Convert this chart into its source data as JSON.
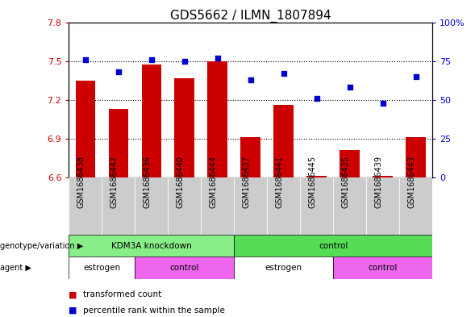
{
  "title": "GDS5662 / ILMN_1807894",
  "samples": [
    "GSM1686438",
    "GSM1686442",
    "GSM1686436",
    "GSM1686440",
    "GSM1686444",
    "GSM1686437",
    "GSM1686441",
    "GSM1686445",
    "GSM1686435",
    "GSM1686439",
    "GSM1686443"
  ],
  "bar_values": [
    7.35,
    7.13,
    7.47,
    7.37,
    7.5,
    6.91,
    7.16,
    6.61,
    6.81,
    6.61,
    6.91
  ],
  "percentile_values": [
    76,
    68,
    76,
    75,
    77,
    63,
    67,
    51,
    58,
    48,
    65
  ],
  "bar_bottom": 6.6,
  "ylim_left": [
    6.6,
    7.8
  ],
  "ylim_right": [
    0,
    100
  ],
  "yticks_left": [
    6.6,
    6.9,
    7.2,
    7.5,
    7.8
  ],
  "ytick_labels_left": [
    "6.6",
    "6.9",
    "7.2",
    "7.5",
    "7.8"
  ],
  "yticks_right": [
    0,
    25,
    50,
    75,
    100
  ],
  "ytick_labels_right": [
    "0",
    "25",
    "50",
    "75",
    "100%"
  ],
  "bar_color": "#cc0000",
  "scatter_color": "#0000cc",
  "genotype_groups": [
    {
      "label": "KDM3A knockdown",
      "start": 0,
      "end": 5,
      "color": "#88ee88"
    },
    {
      "label": "control",
      "start": 5,
      "end": 11,
      "color": "#55dd55"
    }
  ],
  "agent_groups": [
    {
      "label": "estrogen",
      "start": 0,
      "end": 2,
      "color": "#ffffff"
    },
    {
      "label": "control",
      "start": 2,
      "end": 5,
      "color": "#ee66ee"
    },
    {
      "label": "estrogen",
      "start": 5,
      "end": 8,
      "color": "#ffffff"
    },
    {
      "label": "control",
      "start": 8,
      "end": 11,
      "color": "#ee66ee"
    }
  ],
  "legend_bar_label": "transformed count",
  "legend_scatter_label": "percentile rank within the sample",
  "left_label_genotype": "genotype/variation",
  "left_label_agent": "agent",
  "grid_dotted_values": [
    6.9,
    7.2,
    7.5
  ],
  "title_fontsize": 11,
  "tick_fontsize": 8,
  "bar_width": 0.6,
  "sample_cell_color": "#cccccc"
}
